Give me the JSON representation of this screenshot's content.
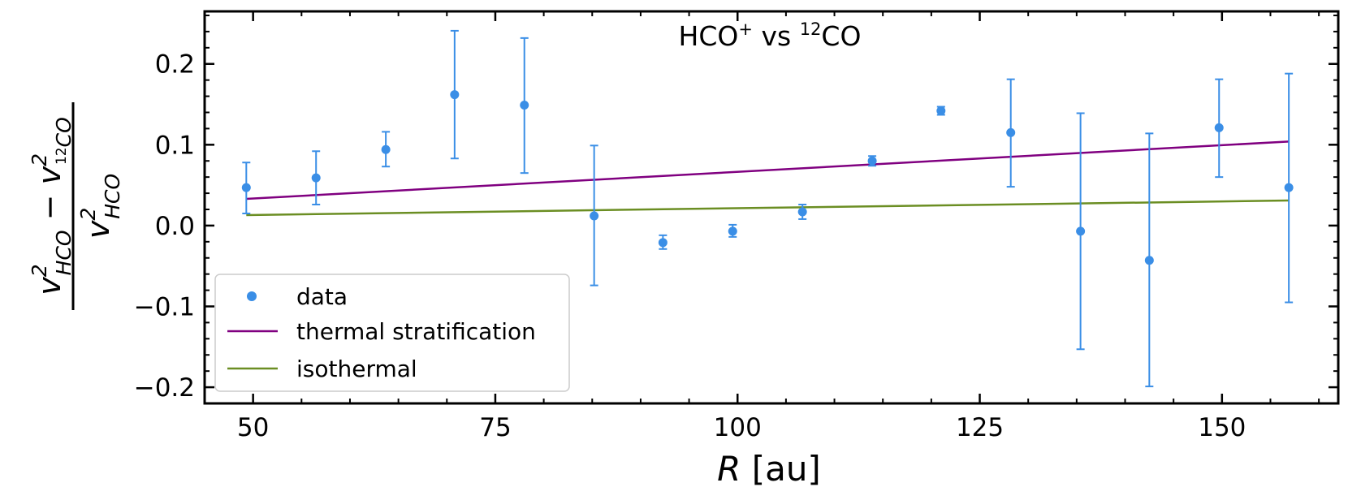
{
  "chart_data": {
    "type": "scatter",
    "title": {
      "species_a": "HCO",
      "species_a_sup": "+",
      "connector": " vs ",
      "species_b_sup": "12",
      "species_b": "CO"
    },
    "xlabel": {
      "var": "R",
      "unit": " [au]"
    },
    "ylabel": {
      "v": "v",
      "sq": "2",
      "hco": "HCO",
      "minus": " − ",
      "iso_sup": "12",
      "co": "CO"
    },
    "xlim": [
      45,
      162
    ],
    "ylim": [
      -0.22,
      0.265
    ],
    "xticks": [
      50,
      75,
      100,
      125,
      150
    ],
    "xtick_labels": [
      "50",
      "75",
      "100",
      "125",
      "150"
    ],
    "yticks": [
      -0.2,
      -0.1,
      0.0,
      0.1,
      0.2
    ],
    "ytick_labels": [
      "−0.2",
      "−0.1",
      "0.0",
      "0.1",
      "0.2"
    ],
    "x_minor_step": 5,
    "y_minor_step": 0.02,
    "series": [
      {
        "name": "data",
        "kind": "errorbar",
        "color": "#3a8ee6",
        "x": [
          49.3,
          56.5,
          63.7,
          70.8,
          78.0,
          85.2,
          92.3,
          99.5,
          106.7,
          113.9,
          121.0,
          128.2,
          135.4,
          142.5,
          149.7,
          156.9
        ],
        "y": [
          0.047,
          0.059,
          0.094,
          0.162,
          0.149,
          0.012,
          -0.021,
          -0.007,
          0.017,
          0.08,
          0.142,
          0.115,
          -0.007,
          -0.043,
          0.121,
          0.047
        ],
        "err_low": [
          0.032,
          0.033,
          0.021,
          0.079,
          0.084,
          0.086,
          0.008,
          0.007,
          0.009,
          0.006,
          0.005,
          0.067,
          0.146,
          0.156,
          0.061,
          0.142
        ],
        "err_high": [
          0.031,
          0.033,
          0.022,
          0.079,
          0.083,
          0.087,
          0.009,
          0.008,
          0.009,
          0.006,
          0.005,
          0.066,
          0.146,
          0.157,
          0.06,
          0.141
        ]
      },
      {
        "name": "thermal stratification",
        "kind": "line",
        "color": "#800080",
        "x": [
          49.3,
          156.9
        ],
        "y": [
          0.033,
          0.104
        ]
      },
      {
        "name": "isothermal",
        "kind": "line",
        "color": "#6b8e23",
        "x": [
          49.3,
          156.9
        ],
        "y": [
          0.013,
          0.031
        ]
      }
    ],
    "legend_position": "lower-left",
    "grid": false
  }
}
